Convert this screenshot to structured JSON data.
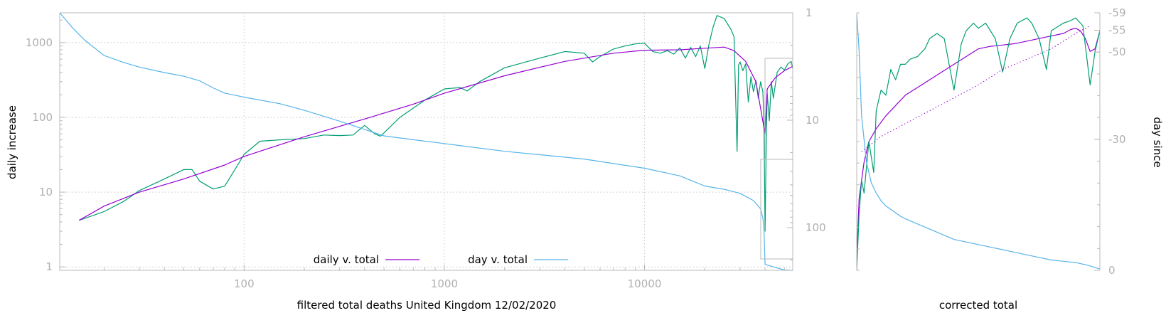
{
  "colors": {
    "daily": "#9400d3",
    "day": "#56b4e9",
    "raw": "#009e73",
    "frame": "#b8b8b8",
    "tick_text": "#b0b0b0"
  },
  "chart_data": [
    {
      "type": "line",
      "x_scale": "log",
      "y_scale": "log",
      "xlim": [
        12,
        55000
      ],
      "ylim": [
        0.9,
        2500
      ],
      "y2_scale": "log",
      "y2_reversed": true,
      "y2lim": [
        1,
        250
      ],
      "grid": true,
      "xlabel": "filtered total deaths United Kingdom 12/02/2020",
      "ylabel": "daily increase",
      "x_ticks": [
        100,
        1000,
        10000
      ],
      "x_tick_labels": [
        "100",
        "1000",
        "10000"
      ],
      "y_ticks": [
        1,
        10,
        100,
        1000
      ],
      "y_tick_labels": [
        "1",
        "10",
        "100",
        "1000"
      ],
      "y2_ticks": [
        1,
        10,
        100
      ],
      "y2_tick_labels": [
        "1",
        "10",
        "100"
      ],
      "legend": [
        {
          "label": "daily v. total",
          "series": "daily v. total"
        },
        {
          "label": "day v. total",
          "series": "day v. total"
        }
      ],
      "legend_position": "bottom-center",
      "series": [
        {
          "name": "daily v. total",
          "axis": "y",
          "x": [
            15,
            20,
            30,
            50,
            80,
            100,
            200,
            400,
            700,
            1000,
            2000,
            4000,
            7000,
            10000,
            15000,
            20000,
            25000,
            28000,
            32000,
            36000,
            40000,
            41000,
            45000,
            50000,
            55000
          ],
          "y": [
            4.2,
            6.5,
            10,
            15,
            23,
            30,
            55,
            95,
            150,
            210,
            360,
            560,
            720,
            790,
            800,
            840,
            870,
            780,
            560,
            300,
            60,
            240,
            340,
            420,
            480
          ]
        },
        {
          "name": "day v. total",
          "axis": "y2",
          "x": [
            12,
            14,
            16,
            20,
            25,
            30,
            40,
            50,
            60,
            70,
            80,
            100,
            150,
            200,
            300,
            500,
            700,
            1000,
            2000,
            5000,
            10000,
            15000,
            20000,
            25000,
            30000,
            35000,
            38000,
            39000,
            39500,
            40000,
            45000,
            50000,
            55000
          ],
          "y": [
            1,
            1.4,
            1.8,
            2.5,
            2.9,
            3.2,
            3.6,
            3.9,
            4.3,
            5,
            5.6,
            6.1,
            7,
            8.1,
            10.2,
            14,
            15.2,
            16.5,
            19.5,
            23,
            28,
            33,
            41,
            44,
            48,
            56,
            67,
            81,
            105,
            220,
            235,
            248,
            250
          ]
        },
        {
          "name": "",
          "axis": "y",
          "x": [
            15,
            20,
            25,
            30,
            40,
            50,
            55,
            60,
            70,
            80,
            90,
            100,
            120,
            150,
            200,
            250,
            300,
            350,
            400,
            450,
            480,
            500,
            600,
            800,
            1000,
            1200,
            1300,
            1500,
            2000,
            3000,
            4000,
            5000,
            5500,
            6000,
            7000,
            8000,
            9000,
            10000,
            11000,
            12000,
            13000,
            14000,
            15000,
            16000,
            17000,
            18000,
            19000,
            20000,
            21000,
            22000,
            23000,
            25000,
            27000,
            28000,
            29000,
            29500,
            30000,
            31000,
            32000,
            33000,
            34000,
            35000,
            36000,
            37000,
            38000,
            39000,
            39500,
            40000,
            40500,
            41000,
            42000,
            43000,
            44000,
            46000,
            48000,
            50000,
            52000,
            54000,
            55000
          ],
          "y": [
            4.2,
            5.5,
            7.5,
            10.5,
            15,
            20,
            20,
            14,
            11,
            12,
            20,
            32,
            48,
            50,
            52,
            58,
            57,
            58,
            78,
            60,
            56,
            62,
            100,
            170,
            240,
            250,
            225,
            300,
            460,
            620,
            760,
            720,
            550,
            650,
            820,
            900,
            960,
            980,
            760,
            720,
            780,
            700,
            850,
            620,
            860,
            650,
            900,
            450,
            950,
            1600,
            2300,
            2100,
            1500,
            1200,
            35,
            500,
            550,
            420,
            520,
            160,
            350,
            220,
            310,
            180,
            300,
            220,
            85,
            3,
            40,
            210,
            90,
            300,
            180,
            400,
            470,
            430,
            520,
            560,
            450
          ]
        }
      ]
    },
    {
      "type": "line",
      "xlabel": "corrected total",
      "y2label": "day since",
      "y2lim": [
        0,
        -59
      ],
      "grid": false,
      "y2_ticks": [
        -59,
        -55,
        -50,
        -30,
        0
      ],
      "y2_tick_labels": [
        "-59",
        "-55",
        "-50",
        "-30",
        "0"
      ],
      "series": [
        {
          "name": "",
          "x": [
            0,
            0.01,
            0.03,
            0.05,
            0.08,
            0.12,
            0.16,
            0.2,
            0.25,
            0.3,
            0.35,
            0.4,
            0.45,
            0.5,
            0.55,
            0.6,
            0.65,
            0.7,
            0.75,
            0.8,
            0.85,
            0.88,
            0.9,
            0.92,
            0.94,
            0.96,
            0.98,
            1.0
          ],
          "y": [
            0.05,
            0.28,
            0.42,
            0.5,
            0.55,
            0.6,
            0.64,
            0.68,
            0.71,
            0.74,
            0.77,
            0.8,
            0.83,
            0.86,
            0.87,
            0.875,
            0.88,
            0.89,
            0.9,
            0.91,
            0.92,
            0.935,
            0.94,
            0.93,
            0.9,
            0.85,
            0.86,
            0.93
          ]
        },
        {
          "name": "",
          "x": [
            0,
            0.01,
            0.02,
            0.03,
            0.05,
            0.07,
            0.08,
            0.1,
            0.12,
            0.14,
            0.16,
            0.18,
            0.2,
            0.22,
            0.25,
            0.28,
            0.3,
            0.33,
            0.36,
            0.4,
            0.43,
            0.45,
            0.48,
            0.5,
            0.53,
            0.57,
            0.6,
            0.63,
            0.66,
            0.7,
            0.72,
            0.75,
            0.78,
            0.8,
            0.85,
            0.88,
            0.9,
            0.93,
            0.96,
            0.98,
            1.0
          ],
          "y": [
            0,
            0.22,
            0.35,
            0.3,
            0.5,
            0.38,
            0.62,
            0.7,
            0.68,
            0.78,
            0.74,
            0.8,
            0.8,
            0.82,
            0.83,
            0.86,
            0.9,
            0.92,
            0.9,
            0.7,
            0.88,
            0.93,
            0.96,
            0.94,
            0.96,
            0.9,
            0.77,
            0.9,
            0.96,
            0.98,
            0.96,
            0.9,
            0.78,
            0.93,
            0.96,
            0.97,
            0.98,
            0.95,
            0.72,
            0.85,
            0.93
          ]
        },
        {
          "name": "",
          "x": [
            0.02,
            0.1,
            0.2,
            0.3,
            0.4,
            0.5,
            0.6,
            0.7,
            0.8,
            0.9,
            0.96
          ],
          "y": [
            0.46,
            0.52,
            0.57,
            0.62,
            0.67,
            0.72,
            0.78,
            0.82,
            0.86,
            0.92,
            0.95
          ]
        },
        {
          "name": "",
          "x": [
            0,
            0.01,
            0.02,
            0.04,
            0.06,
            0.08,
            0.1,
            0.12,
            0.15,
            0.18,
            0.2,
            0.25,
            0.3,
            0.35,
            0.4,
            0.45,
            0.5,
            0.55,
            0.6,
            0.65,
            0.7,
            0.75,
            0.8,
            0.85,
            0.9,
            0.95,
            1.0
          ],
          "y": [
            1,
            0.85,
            0.6,
            0.42,
            0.34,
            0.3,
            0.27,
            0.25,
            0.23,
            0.21,
            0.2,
            0.18,
            0.16,
            0.14,
            0.12,
            0.11,
            0.1,
            0.09,
            0.08,
            0.07,
            0.06,
            0.05,
            0.04,
            0.035,
            0.03,
            0.02,
            0.005
          ]
        }
      ]
    }
  ]
}
